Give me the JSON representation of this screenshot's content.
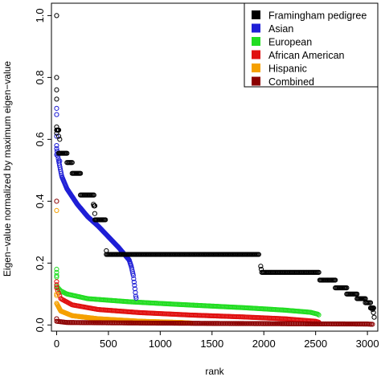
{
  "chart_data": {
    "type": "scatter",
    "title": "",
    "xlabel": "rank",
    "ylabel": "Eigen−value normalized by maximum eigen−value",
    "xlim": [
      -50,
      3100
    ],
    "ylim": [
      -0.02,
      1.04
    ],
    "xticks": [
      0,
      500,
      1000,
      1500,
      2000,
      2500,
      3000
    ],
    "yticks": [
      0.0,
      0.2,
      0.4,
      0.6,
      0.8,
      1.0
    ],
    "xtick_labels": [
      "0",
      "500",
      "1000",
      "1500",
      "2000",
      "2500",
      "3000"
    ],
    "ytick_labels": [
      "0.0",
      "0.2",
      "0.4",
      "0.6",
      "0.8",
      "1.0"
    ],
    "grid": false,
    "legend_position": "top-right",
    "legend": [
      {
        "name": "Framingham pedigree",
        "color": "#000000"
      },
      {
        "name": "Asian",
        "color": "#1f1fd6"
      },
      {
        "name": "European",
        "color": "#22dd22"
      },
      {
        "name": "African American",
        "color": "#e01010"
      },
      {
        "name": "Hispanic",
        "color": "#f5a000"
      },
      {
        "name": "Combined",
        "color": "#8b0000"
      }
    ],
    "series": [
      {
        "name": "Framingham pedigree",
        "color": "#000000",
        "outliers": [
          [
            0,
            1.0
          ],
          [
            0,
            0.8
          ],
          [
            0,
            0.76
          ],
          [
            0,
            0.73
          ],
          [
            0,
            0.64
          ],
          [
            0,
            0.62
          ],
          [
            20,
            0.61
          ],
          [
            30,
            0.6
          ],
          [
            355,
            0.39
          ],
          [
            368,
            0.36
          ],
          [
            480,
            0.24
          ],
          [
            1970,
            0.19
          ],
          [
            1975,
            0.18
          ],
          [
            3050,
            0.05
          ],
          [
            3058,
            0.04
          ],
          [
            3065,
            0.025
          ]
        ],
        "steps": [
          [
            0,
            20,
            0.63
          ],
          [
            20,
            100,
            0.555
          ],
          [
            100,
            150,
            0.525
          ],
          [
            150,
            230,
            0.49
          ],
          [
            230,
            360,
            0.42
          ],
          [
            360,
            370,
            0.385
          ],
          [
            370,
            480,
            0.34
          ],
          [
            480,
            1960,
            0.228
          ],
          [
            1980,
            2540,
            0.17
          ],
          [
            2540,
            2690,
            0.145
          ],
          [
            2690,
            2800,
            0.12
          ],
          [
            2800,
            2900,
            0.1
          ],
          [
            2900,
            2980,
            0.085
          ],
          [
            2980,
            3030,
            0.072
          ],
          [
            3030,
            3060,
            0.055
          ]
        ]
      },
      {
        "name": "Asian",
        "color": "#1f1fd6",
        "outliers": [
          [
            0,
            0.7
          ],
          [
            0,
            0.68
          ],
          [
            0,
            0.61
          ],
          [
            0,
            0.55
          ],
          [
            0,
            0.58
          ],
          [
            30,
            0.53
          ]
        ],
        "curve": [
          [
            0,
            0.57
          ],
          [
            20,
            0.53
          ],
          [
            50,
            0.48
          ],
          [
            100,
            0.44
          ],
          [
            200,
            0.39
          ],
          [
            300,
            0.35
          ],
          [
            400,
            0.32
          ],
          [
            500,
            0.285
          ],
          [
            600,
            0.25
          ],
          [
            700,
            0.21
          ],
          [
            720,
            0.19
          ],
          [
            740,
            0.16
          ],
          [
            755,
            0.12
          ],
          [
            765,
            0.09
          ],
          [
            770,
            0.085
          ]
        ]
      },
      {
        "name": "European",
        "color": "#22dd22",
        "outliers": [
          [
            0,
            0.18
          ],
          [
            0,
            0.17
          ],
          [
            0,
            0.16
          ],
          [
            0,
            0.155
          ]
        ],
        "curve": [
          [
            0,
            0.125
          ],
          [
            40,
            0.11
          ],
          [
            100,
            0.1
          ],
          [
            300,
            0.085
          ],
          [
            700,
            0.075
          ],
          [
            1200,
            0.066
          ],
          [
            1800,
            0.056
          ],
          [
            2200,
            0.048
          ],
          [
            2450,
            0.041
          ],
          [
            2520,
            0.035
          ],
          [
            2540,
            0.03
          ]
        ]
      },
      {
        "name": "African American",
        "color": "#e01010",
        "outliers": [
          [
            0,
            0.14
          ],
          [
            0,
            0.13
          ]
        ],
        "curve": [
          [
            0,
            0.12
          ],
          [
            40,
            0.085
          ],
          [
            150,
            0.065
          ],
          [
            400,
            0.05
          ],
          [
            800,
            0.04
          ],
          [
            1300,
            0.032
          ],
          [
            1800,
            0.026
          ],
          [
            2200,
            0.02
          ],
          [
            2500,
            0.012
          ],
          [
            2540,
            0.008
          ]
        ]
      },
      {
        "name": "Hispanic",
        "color": "#f5a000",
        "outliers": [
          [
            0,
            0.37
          ],
          [
            0,
            0.1
          ],
          [
            0,
            0.095
          ]
        ],
        "curve": [
          [
            0,
            0.07
          ],
          [
            40,
            0.045
          ],
          [
            150,
            0.03
          ],
          [
            400,
            0.02
          ],
          [
            800,
            0.012
          ],
          [
            1200,
            0.008
          ],
          [
            1300,
            0.006
          ]
        ]
      },
      {
        "name": "Combined",
        "color": "#8b0000",
        "outliers": [
          [
            0,
            0.4
          ],
          [
            0,
            0.02
          ]
        ],
        "curve": [
          [
            0,
            0.012
          ],
          [
            100,
            0.008
          ],
          [
            500,
            0.007
          ],
          [
            1500,
            0.005
          ],
          [
            3000,
            0.003
          ],
          [
            3060,
            0.002
          ]
        ]
      }
    ]
  }
}
